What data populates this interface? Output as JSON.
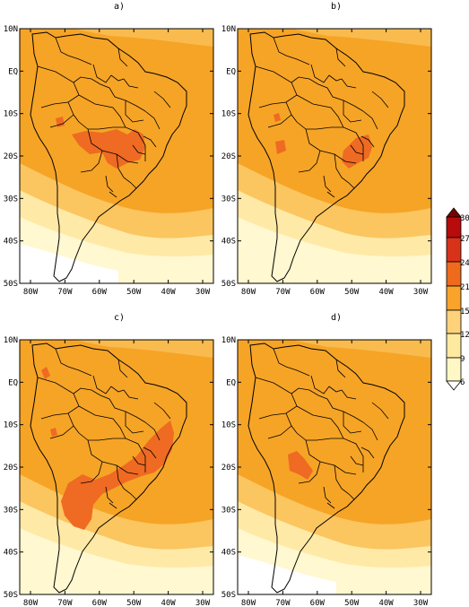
{
  "panels": [
    {
      "id": "a",
      "label": "a)"
    },
    {
      "id": "b",
      "label": "b)"
    },
    {
      "id": "c",
      "label": "c)"
    },
    {
      "id": "d",
      "label": "d)"
    }
  ],
  "axes": {
    "lat_ticks": [
      "10N",
      "EQ",
      "10S",
      "20S",
      "30S",
      "40S",
      "50S"
    ],
    "lon_ticks": [
      "80W",
      "70W",
      "60W",
      "50W",
      "40W",
      "30W"
    ]
  },
  "colorbar": {
    "levels": [
      "6",
      "9",
      "12",
      "15",
      "21",
      "24",
      "27",
      "30"
    ],
    "colors": [
      "#ffffff",
      "#fff7c4",
      "#fee9a0",
      "#fdd27a",
      "#f8a32a",
      "#ee6a1d",
      "#d9321b",
      "#b80b0b",
      "#7a0000"
    ]
  },
  "colors": {
    "background": "#f6a426",
    "contour_light": "#ffe9a6",
    "contour_pale": "#fff8d0",
    "contour_mid": "#fbc560",
    "hotspot": "#ef6a22",
    "land_line": "#000000"
  }
}
